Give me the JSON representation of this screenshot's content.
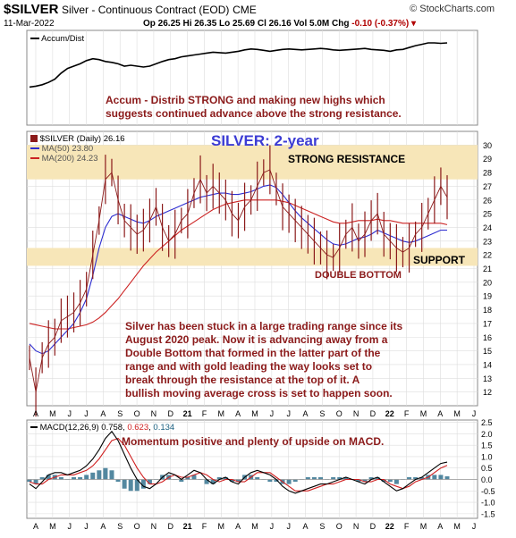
{
  "header": {
    "symbol": "$SILVER",
    "description": "Silver - Continuous Contract (EOD)",
    "exchange": "CME",
    "date": "11-Mar-2022",
    "ohlc": "Op 26.25  Hi 26.35  Lo 25.69  Cl 26.16  Vol 5.0M",
    "change_label": "Chg",
    "change": "-0.10 (-0.37%)",
    "source": "© StockCharts.com"
  },
  "panels": {
    "accum": {
      "legend": "Accum/Dist",
      "annotation": [
        "Accum - Distrib STRONG  and making new highs which",
        "suggests continued advance above the strong resistance."
      ]
    },
    "price": {
      "legend_main": "$SILVER (Daily) 26.16",
      "legend_ma50": "MA(50) 23.80",
      "legend_ma200": "MA(200) 24.23",
      "title": "SILVER: 2-year",
      "label_resistance": "STRONG RESISTANCE",
      "label_support": "SUPPORT",
      "label_double_bottom": "DOUBLE BOTTOM",
      "annotation": [
        "Silver has been stuck in a large trading range since its",
        "August 2020 peak. Now it is advancing away from a",
        "Double Bottom that formed in the latter part of the",
        "range and with gold leading the way looks set to",
        "break through the resistance at the top of it. A",
        "bullish moving average cross is set to happen soon."
      ]
    },
    "macd": {
      "legend_label": "MACD(12,26,9)",
      "legend_v1": "0.758",
      "legend_v2": "0.623",
      "legend_v3": "0.134",
      "annotation": "Momentum positive and plenty of upside on MACD."
    }
  },
  "colors": {
    "resistance_zone": "#f7e6b8",
    "price_line": "#8b1a1a",
    "ma50": "#2d2dd0",
    "ma200": "#cc2222",
    "macd_line": "#000000",
    "signal_line": "#d02020",
    "histogram": "#1a6080",
    "grid": "#dddddd"
  },
  "chart_data": {
    "type": "line",
    "x_axis_months": [
      "A",
      "M",
      "J",
      "J",
      "A",
      "S",
      "O",
      "N",
      "D",
      "21",
      "F",
      "M",
      "A",
      "M",
      "J",
      "J",
      "A",
      "S",
      "O",
      "N",
      "D",
      "22",
      "F",
      "M",
      "A",
      "M",
      "J"
    ],
    "price_axis": {
      "ylim": [
        11,
        31
      ],
      "ticks": [
        12,
        13,
        14,
        15,
        16,
        17,
        18,
        19,
        20,
        21,
        22,
        23,
        24,
        25,
        26,
        27,
        28,
        29,
        30
      ],
      "resistance_zone": [
        27.5,
        30.0
      ],
      "support_zone": [
        21.2,
        22.5
      ]
    },
    "price": [
      14.5,
      12.0,
      14.5,
      15.5,
      16.0,
      17.2,
      17.5,
      17.8,
      18.5,
      19.5,
      22.0,
      24.5,
      27.5,
      28.0,
      26.0,
      24.5,
      24.0,
      23.5,
      23.8,
      24.5,
      25.5,
      24.0,
      23.0,
      23.5,
      24.5,
      25.0,
      26.5,
      27.5,
      26.5,
      27.0,
      26.5,
      26.0,
      25.0,
      24.5,
      25.5,
      26.0,
      27.0,
      28.0,
      28.2,
      26.8,
      25.5,
      25.0,
      24.5,
      24.0,
      23.5,
      23.0,
      22.5,
      22.0,
      21.8,
      22.5,
      23.5,
      24.0,
      23.0,
      23.5,
      24.5,
      25.0,
      23.5,
      23.0,
      22.5,
      22.2,
      22.5,
      23.5,
      24.0,
      25.0,
      26.0,
      27.0,
      26.2
    ],
    "ma50": [
      15.5,
      15.0,
      14.8,
      15.0,
      15.5,
      16.0,
      16.5,
      17.0,
      17.8,
      18.8,
      20.5,
      22.5,
      24.0,
      24.8,
      25.0,
      24.8,
      24.6,
      24.4,
      24.3,
      24.5,
      24.8,
      25.0,
      25.2,
      25.4,
      25.6,
      25.8,
      26.0,
      26.2,
      26.3,
      26.4,
      26.5,
      26.5,
      26.4,
      26.4,
      26.5,
      26.6,
      26.8,
      27.0,
      27.1,
      26.9,
      26.4,
      25.8,
      25.2,
      24.7,
      24.3,
      23.9,
      23.5,
      23.1,
      22.8,
      22.7,
      22.8,
      23.0,
      23.2,
      23.3,
      23.5,
      23.8,
      23.6,
      23.4,
      23.2,
      23.0,
      22.9,
      23.0,
      23.2,
      23.4,
      23.6,
      23.8,
      23.8
    ],
    "ma200": [
      17.0,
      16.9,
      16.8,
      16.7,
      16.6,
      16.6,
      16.6,
      16.7,
      16.8,
      16.9,
      17.1,
      17.4,
      17.8,
      18.3,
      18.8,
      19.4,
      20.0,
      20.6,
      21.2,
      21.7,
      22.2,
      22.6,
      23.0,
      23.4,
      23.8,
      24.1,
      24.4,
      24.7,
      25.0,
      25.3,
      25.5,
      25.7,
      25.8,
      25.9,
      26.0,
      26.0,
      26.0,
      26.0,
      26.0,
      26.0,
      25.9,
      25.8,
      25.6,
      25.4,
      25.2,
      25.0,
      24.8,
      24.6,
      24.4,
      24.3,
      24.3,
      24.4,
      24.5,
      24.5,
      24.5,
      24.6,
      24.5,
      24.5,
      24.4,
      24.3,
      24.3,
      24.3,
      24.3,
      24.3,
      24.3,
      24.3,
      24.2
    ],
    "accum_dist": [
      0.05,
      0.07,
      0.1,
      0.15,
      0.22,
      0.35,
      0.45,
      0.5,
      0.55,
      0.62,
      0.66,
      0.64,
      0.6,
      0.58,
      0.55,
      0.5,
      0.52,
      0.5,
      0.48,
      0.5,
      0.55,
      0.6,
      0.64,
      0.66,
      0.7,
      0.72,
      0.74,
      0.76,
      0.78,
      0.8,
      0.79,
      0.78,
      0.8,
      0.82,
      0.85,
      0.87,
      0.86,
      0.84,
      0.82,
      0.84,
      0.86,
      0.87,
      0.86,
      0.85,
      0.86,
      0.87,
      0.88,
      0.87,
      0.85,
      0.84,
      0.85,
      0.86,
      0.87,
      0.88,
      0.86,
      0.85,
      0.84,
      0.82,
      0.85,
      0.86,
      0.9,
      0.94,
      0.97,
      1.0,
      1.0,
      0.99,
      1.0
    ],
    "macd_axis": {
      "ylim": [
        -1.7,
        2.6
      ],
      "ticks": [
        -1.5,
        -1.0,
        -0.5,
        0.0,
        0.5,
        1.0,
        1.5,
        2.0,
        2.5
      ]
    },
    "macd": [
      -0.2,
      -0.4,
      -0.1,
      0.2,
      0.3,
      0.3,
      0.2,
      0.3,
      0.4,
      0.6,
      0.9,
      1.3,
      1.8,
      2.1,
      1.7,
      1.1,
      0.5,
      0.0,
      -0.3,
      -0.4,
      -0.2,
      0.1,
      0.3,
      0.2,
      0.0,
      0.2,
      0.4,
      0.3,
      0.0,
      -0.2,
      0.0,
      0.1,
      -0.1,
      -0.2,
      0.1,
      0.3,
      0.4,
      0.3,
      0.2,
      0.0,
      -0.3,
      -0.5,
      -0.6,
      -0.5,
      -0.4,
      -0.3,
      -0.2,
      -0.2,
      -0.1,
      0.0,
      0.1,
      0.0,
      -0.1,
      -0.2,
      0.0,
      0.1,
      -0.1,
      -0.3,
      -0.5,
      -0.4,
      -0.2,
      0.0,
      0.1,
      0.3,
      0.5,
      0.7,
      0.76
    ],
    "signal": [
      -0.1,
      -0.2,
      -0.2,
      0.0,
      0.1,
      0.2,
      0.2,
      0.2,
      0.3,
      0.4,
      0.6,
      0.9,
      1.3,
      1.7,
      1.8,
      1.5,
      1.0,
      0.5,
      0.1,
      -0.2,
      -0.2,
      -0.1,
      0.1,
      0.2,
      0.1,
      0.1,
      0.2,
      0.3,
      0.2,
      0.0,
      -0.1,
      0.0,
      0.0,
      -0.1,
      -0.1,
      0.1,
      0.3,
      0.3,
      0.3,
      0.1,
      -0.1,
      -0.3,
      -0.5,
      -0.5,
      -0.5,
      -0.4,
      -0.3,
      -0.2,
      -0.2,
      -0.1,
      0.0,
      0.0,
      0.0,
      -0.1,
      -0.1,
      0.0,
      0.0,
      -0.2,
      -0.3,
      -0.4,
      -0.3,
      -0.1,
      0.0,
      0.1,
      0.3,
      0.5,
      0.62
    ]
  }
}
